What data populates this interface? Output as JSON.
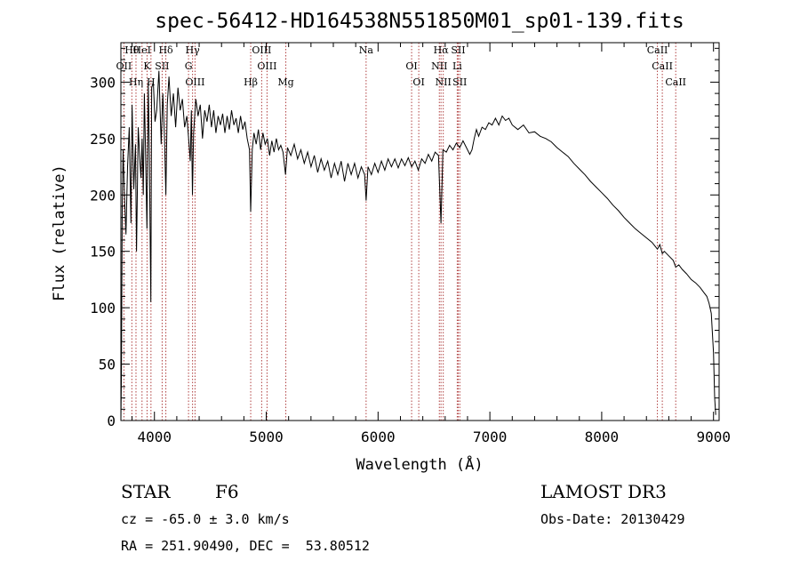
{
  "chart_data": {
    "type": "line",
    "title": "spec-56412-HD164538N551850M01_sp01-139.fits",
    "xlabel": "Wavelength (Å)",
    "ylabel": "Flux (relative)",
    "xlim": [
      3700,
      9050
    ],
    "ylim": [
      0,
      335
    ],
    "xticks": [
      4000,
      5000,
      6000,
      7000,
      8000,
      9000
    ],
    "yticks": [
      0,
      50,
      100,
      150,
      200,
      250,
      300
    ],
    "grid": false,
    "series": [
      {
        "name": "flux",
        "color": "#000000",
        "points": [
          [
            3700,
            0
          ],
          [
            3705,
            40
          ],
          [
            3712,
            190
          ],
          [
            3720,
            240
          ],
          [
            3730,
            205
          ],
          [
            3745,
            165
          ],
          [
            3760,
            225
          ],
          [
            3775,
            260
          ],
          [
            3790,
            175
          ],
          [
            3800,
            280
          ],
          [
            3815,
            205
          ],
          [
            3830,
            245
          ],
          [
            3840,
            150
          ],
          [
            3855,
            260
          ],
          [
            3870,
            230
          ],
          [
            3880,
            215
          ],
          [
            3890,
            250
          ],
          [
            3900,
            200
          ],
          [
            3910,
            290
          ],
          [
            3920,
            240
          ],
          [
            3933,
            170
          ],
          [
            3945,
            300
          ],
          [
            3955,
            230
          ],
          [
            3968,
            105
          ],
          [
            3975,
            295
          ],
          [
            3990,
            300
          ],
          [
            4005,
            265
          ],
          [
            4020,
            275
          ],
          [
            4040,
            310
          ],
          [
            4060,
            245
          ],
          [
            4075,
            290
          ],
          [
            4090,
            250
          ],
          [
            4102,
            200
          ],
          [
            4115,
            280
          ],
          [
            4130,
            305
          ],
          [
            4150,
            270
          ],
          [
            4170,
            290
          ],
          [
            4190,
            260
          ],
          [
            4210,
            295
          ],
          [
            4230,
            275
          ],
          [
            4250,
            285
          ],
          [
            4270,
            260
          ],
          [
            4290,
            270
          ],
          [
            4310,
            245
          ],
          [
            4320,
            230
          ],
          [
            4330,
            275
          ],
          [
            4340,
            200
          ],
          [
            4350,
            255
          ],
          [
            4370,
            285
          ],
          [
            4390,
            270
          ],
          [
            4410,
            280
          ],
          [
            4430,
            250
          ],
          [
            4450,
            275
          ],
          [
            4470,
            265
          ],
          [
            4490,
            280
          ],
          [
            4510,
            260
          ],
          [
            4530,
            275
          ],
          [
            4550,
            255
          ],
          [
            4570,
            270
          ],
          [
            4590,
            262
          ],
          [
            4610,
            272
          ],
          [
            4630,
            255
          ],
          [
            4650,
            270
          ],
          [
            4670,
            258
          ],
          [
            4690,
            275
          ],
          [
            4710,
            262
          ],
          [
            4730,
            268
          ],
          [
            4750,
            255
          ],
          [
            4770,
            270
          ],
          [
            4790,
            258
          ],
          [
            4810,
            265
          ],
          [
            4830,
            250
          ],
          [
            4850,
            240
          ],
          [
            4861,
            185
          ],
          [
            4875,
            240
          ],
          [
            4890,
            255
          ],
          [
            4910,
            245
          ],
          [
            4930,
            258
          ],
          [
            4950,
            240
          ],
          [
            4970,
            255
          ],
          [
            4990,
            245
          ],
          [
            5010,
            250
          ],
          [
            5030,
            235
          ],
          [
            5050,
            248
          ],
          [
            5070,
            238
          ],
          [
            5090,
            250
          ],
          [
            5110,
            240
          ],
          [
            5130,
            244
          ],
          [
            5150,
            238
          ],
          [
            5172,
            218
          ],
          [
            5190,
            242
          ],
          [
            5220,
            235
          ],
          [
            5250,
            245
          ],
          [
            5280,
            232
          ],
          [
            5310,
            240
          ],
          [
            5340,
            228
          ],
          [
            5370,
            238
          ],
          [
            5400,
            225
          ],
          [
            5430,
            235
          ],
          [
            5460,
            220
          ],
          [
            5490,
            232
          ],
          [
            5520,
            222
          ],
          [
            5550,
            230
          ],
          [
            5580,
            215
          ],
          [
            5610,
            228
          ],
          [
            5640,
            218
          ],
          [
            5670,
            230
          ],
          [
            5700,
            212
          ],
          [
            5730,
            228
          ],
          [
            5760,
            218
          ],
          [
            5790,
            228
          ],
          [
            5820,
            215
          ],
          [
            5850,
            225
          ],
          [
            5880,
            218
          ],
          [
            5893,
            195
          ],
          [
            5910,
            225
          ],
          [
            5940,
            218
          ],
          [
            5970,
            228
          ],
          [
            6000,
            220
          ],
          [
            6030,
            230
          ],
          [
            6060,
            222
          ],
          [
            6090,
            232
          ],
          [
            6120,
            225
          ],
          [
            6150,
            232
          ],
          [
            6180,
            224
          ],
          [
            6210,
            232
          ],
          [
            6240,
            226
          ],
          [
            6270,
            233
          ],
          [
            6300,
            225
          ],
          [
            6330,
            230
          ],
          [
            6360,
            222
          ],
          [
            6390,
            232
          ],
          [
            6420,
            228
          ],
          [
            6450,
            236
          ],
          [
            6480,
            230
          ],
          [
            6510,
            238
          ],
          [
            6540,
            235
          ],
          [
            6563,
            175
          ],
          [
            6580,
            240
          ],
          [
            6610,
            238
          ],
          [
            6640,
            244
          ],
          [
            6670,
            240
          ],
          [
            6700,
            246
          ],
          [
            6730,
            242
          ],
          [
            6760,
            248
          ],
          [
            6790,
            242
          ],
          [
            6820,
            236
          ],
          [
            6840,
            240
          ],
          [
            6860,
            250
          ],
          [
            6880,
            258
          ],
          [
            6900,
            252
          ],
          [
            6930,
            260
          ],
          [
            6960,
            258
          ],
          [
            6990,
            264
          ],
          [
            7020,
            262
          ],
          [
            7050,
            268
          ],
          [
            7080,
            262
          ],
          [
            7110,
            270
          ],
          [
            7140,
            266
          ],
          [
            7170,
            268
          ],
          [
            7200,
            262
          ],
          [
            7250,
            258
          ],
          [
            7300,
            262
          ],
          [
            7350,
            255
          ],
          [
            7400,
            256
          ],
          [
            7450,
            252
          ],
          [
            7500,
            250
          ],
          [
            7550,
            247
          ],
          [
            7600,
            242
          ],
          [
            7650,
            238
          ],
          [
            7700,
            234
          ],
          [
            7750,
            228
          ],
          [
            7800,
            223
          ],
          [
            7850,
            218
          ],
          [
            7900,
            212
          ],
          [
            7950,
            207
          ],
          [
            8000,
            202
          ],
          [
            8050,
            197
          ],
          [
            8100,
            191
          ],
          [
            8150,
            186
          ],
          [
            8200,
            180
          ],
          [
            8250,
            175
          ],
          [
            8300,
            170
          ],
          [
            8350,
            166
          ],
          [
            8400,
            162
          ],
          [
            8450,
            158
          ],
          [
            8498,
            152
          ],
          [
            8520,
            156
          ],
          [
            8542,
            148
          ],
          [
            8560,
            150
          ],
          [
            8600,
            146
          ],
          [
            8640,
            142
          ],
          [
            8662,
            136
          ],
          [
            8690,
            138
          ],
          [
            8720,
            134
          ],
          [
            8760,
            130
          ],
          [
            8800,
            125
          ],
          [
            8840,
            122
          ],
          [
            8880,
            118
          ],
          [
            8910,
            114
          ],
          [
            8940,
            110
          ],
          [
            8960,
            104
          ],
          [
            8980,
            95
          ],
          [
            9000,
            60
          ],
          [
            9010,
            20
          ],
          [
            9020,
            5
          ]
        ]
      }
    ],
    "lines": [
      {
        "label": "Hθ",
        "x": 3798,
        "color": "#b04040"
      },
      {
        "label": "OII",
        "x": 3727,
        "color": "#b04040"
      },
      {
        "label": "Hη",
        "x": 3835,
        "color": "#b04040"
      },
      {
        "label": "HeI",
        "x": 3889,
        "color": "#b04040"
      },
      {
        "label": "K",
        "x": 3934,
        "color": "#b04040"
      },
      {
        "label": "H",
        "x": 3969,
        "color": "#b04040"
      },
      {
        "label": "Hδ",
        "x": 4102,
        "color": "#b04040"
      },
      {
        "label": "SII",
        "x": 4069,
        "color": "#b04040"
      },
      {
        "label": "OIII",
        "x": 4363,
        "color": "#b04040"
      },
      {
        "label": "Hγ",
        "x": 4341,
        "color": "#b04040"
      },
      {
        "label": "G",
        "x": 4305,
        "color": "#b04040"
      },
      {
        "label": "Hβ",
        "x": 4861,
        "color": "#b04040"
      },
      {
        "label": "OIII",
        "x": 4959,
        "color": "#b04040"
      },
      {
        "label": "OIII",
        "x": 5007,
        "color": "#b04040"
      },
      {
        "label": "Mg",
        "x": 5175,
        "color": "#b04040"
      },
      {
        "label": "Na",
        "x": 5893,
        "color": "#b04040"
      },
      {
        "label": "OI",
        "x": 6300,
        "color": "#b04040"
      },
      {
        "label": "OI",
        "x": 6364,
        "color": "#b04040"
      },
      {
        "label": "Hα",
        "x": 6563,
        "color": "#b04040"
      },
      {
        "label": "NII",
        "x": 6548,
        "color": "#b04040"
      },
      {
        "label": "NII",
        "x": 6583,
        "color": "#b04040"
      },
      {
        "label": "SII",
        "x": 6717,
        "color": "#b04040"
      },
      {
        "label": "Li",
        "x": 6708,
        "color": "#b04040"
      },
      {
        "label": "SII",
        "x": 6731,
        "color": "#b04040"
      },
      {
        "label": "CaII",
        "x": 8498,
        "color": "#b04040"
      },
      {
        "label": "CaII",
        "x": 8542,
        "color": "#b04040"
      },
      {
        "label": "CaII",
        "x": 8662,
        "color": "#b04040"
      }
    ]
  },
  "info": {
    "class_label": "STAR",
    "subclass": "F6",
    "survey": "LAMOST DR3",
    "velocity": "cz = -65.0 ± 3.0 km/s",
    "obs_date": "Obs-Date: 20130429",
    "coords": "RA = 251.90490, DEC =  53.80512"
  }
}
